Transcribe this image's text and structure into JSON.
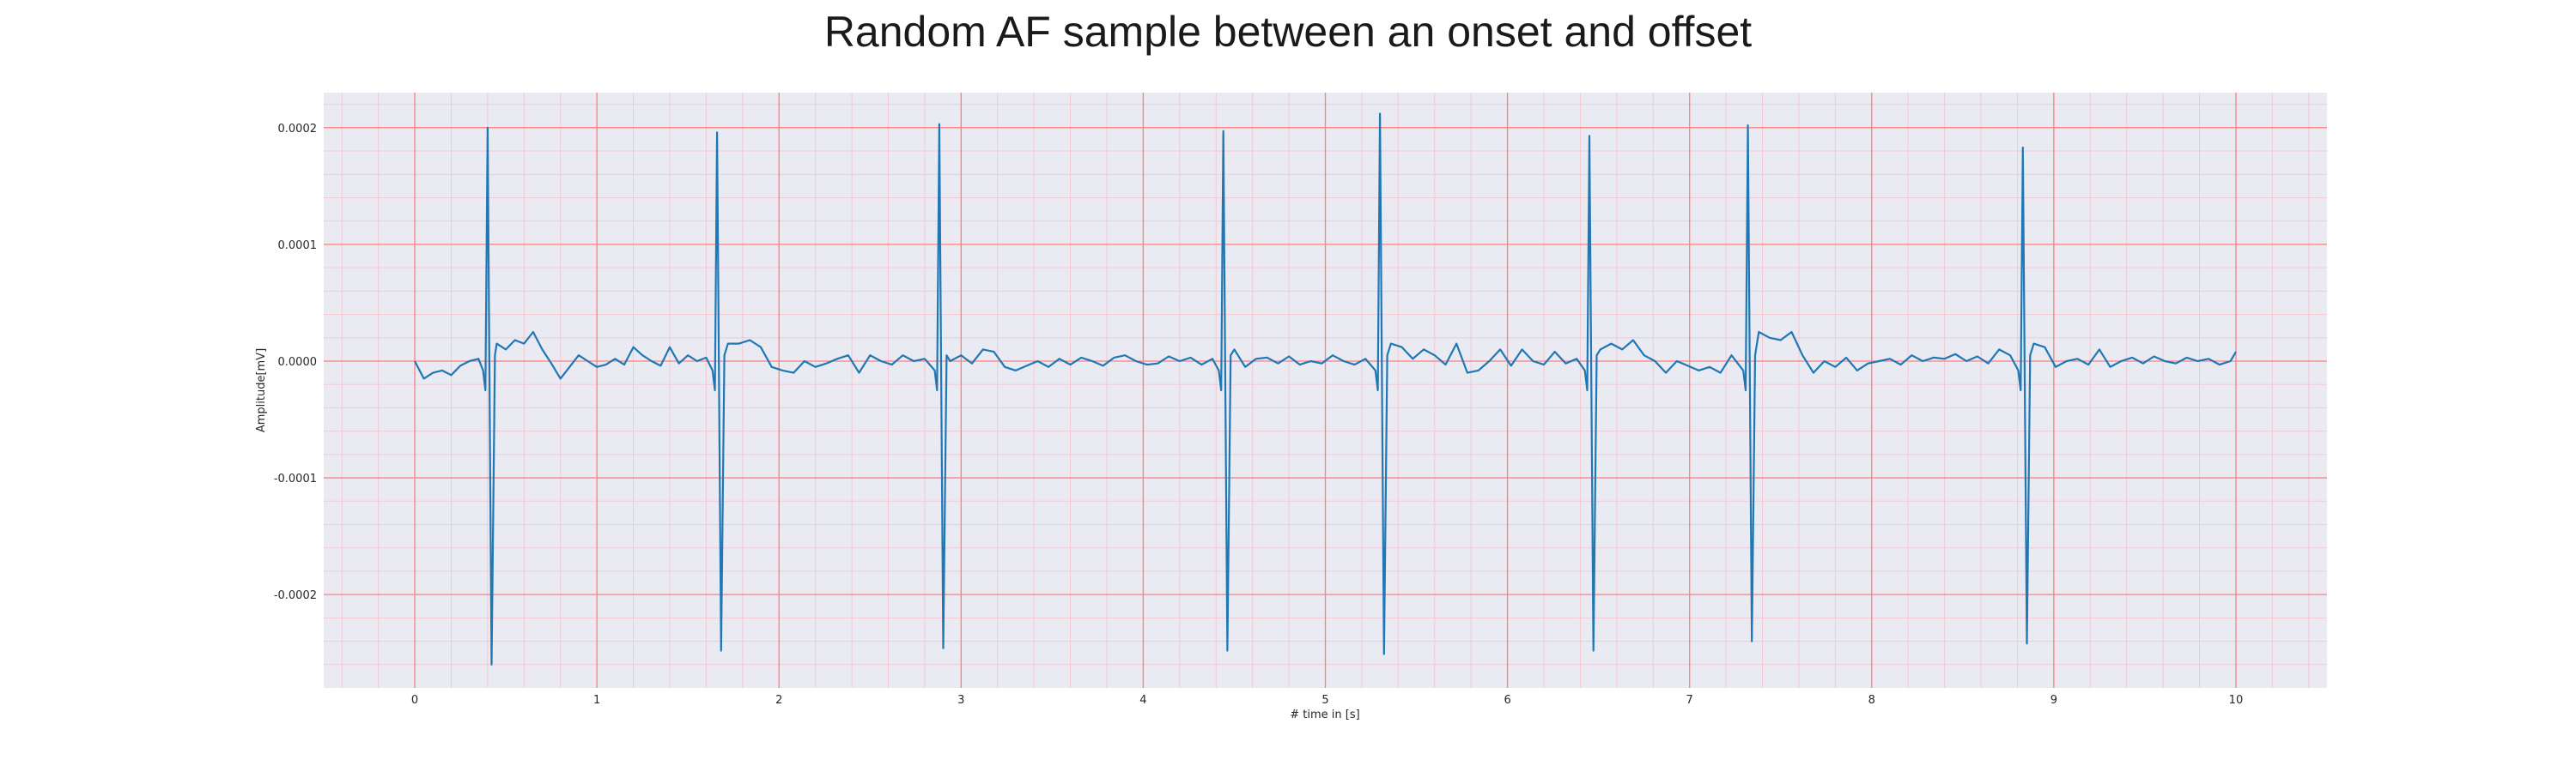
{
  "chart_data": {
    "type": "line",
    "title": "Random AF sample between an onset and offset",
    "xlabel": "# time in [s]",
    "ylabel": "Amplitude[mV]",
    "xlim": [
      -0.5,
      10.5
    ],
    "ylim": [
      -0.00028,
      0.00023
    ],
    "x_ticks": [
      0,
      1,
      2,
      3,
      4,
      5,
      6,
      7,
      8,
      9,
      10
    ],
    "x_tick_labels": [
      "0",
      "1",
      "2",
      "3",
      "4",
      "5",
      "6",
      "7",
      "8",
      "9",
      "10"
    ],
    "y_ticks": [
      0.0002,
      0.0001,
      0.0,
      -0.0001,
      -0.0002
    ],
    "y_tick_labels": [
      "0.0002",
      "0.0001",
      "0.0000",
      "-0.0001",
      "-0.0002"
    ],
    "grid": true,
    "minor_grid": true,
    "legend": "none",
    "colors": {
      "background": "#eaeaf2",
      "major_grid": "#ff7f7f",
      "minor_grid": "#f3c9d2",
      "line": "#1f77b4"
    },
    "beats": [
      {
        "t": 0.4,
        "peak": 0.0002,
        "trough": -0.00026
      },
      {
        "t": 1.66,
        "peak": 0.000196,
        "trough": -0.000248
      },
      {
        "t": 2.88,
        "peak": 0.000203,
        "trough": -0.000246
      },
      {
        "t": 4.44,
        "peak": 0.000197,
        "trough": -0.000248
      },
      {
        "t": 5.3,
        "peak": 0.000212,
        "trough": -0.000251
      },
      {
        "t": 6.45,
        "peak": 0.000193,
        "trough": -0.000248
      },
      {
        "t": 7.32,
        "peak": 0.000202,
        "trough": -0.00024
      },
      {
        "t": 8.83,
        "peak": 0.000183,
        "trough": -0.000242
      }
    ],
    "baseline_series": {
      "x": [
        0,
        0.05,
        0.1,
        0.15,
        0.2,
        0.25,
        0.3,
        0.35,
        0.45,
        0.5,
        0.55,
        0.6,
        0.65,
        0.7,
        0.75,
        0.8,
        0.85,
        0.9,
        0.95,
        1.0,
        1.05,
        1.1,
        1.15,
        1.2,
        1.25,
        1.3,
        1.35,
        1.4,
        1.45,
        1.5,
        1.55,
        1.6,
        1.72,
        1.78,
        1.84,
        1.9,
        1.96,
        2.02,
        2.08,
        2.14,
        2.2,
        2.26,
        2.32,
        2.38,
        2.44,
        2.5,
        2.56,
        2.62,
        2.68,
        2.74,
        2.8,
        2.94,
        3.0,
        3.06,
        3.12,
        3.18,
        3.24,
        3.3,
        3.36,
        3.42,
        3.48,
        3.54,
        3.6,
        3.66,
        3.72,
        3.78,
        3.84,
        3.9,
        3.96,
        4.02,
        4.08,
        4.14,
        4.2,
        4.26,
        4.32,
        4.38,
        4.5,
        4.56,
        4.62,
        4.68,
        4.74,
        4.8,
        4.86,
        4.92,
        4.98,
        5.04,
        5.1,
        5.16,
        5.22,
        5.36,
        5.42,
        5.48,
        5.54,
        5.6,
        5.66,
        5.72,
        5.78,
        5.84,
        5.9,
        5.96,
        6.02,
        6.08,
        6.14,
        6.2,
        6.26,
        6.32,
        6.38,
        6.51,
        6.57,
        6.63,
        6.69,
        6.75,
        6.81,
        6.87,
        6.93,
        6.99,
        7.05,
        7.11,
        7.17,
        7.23,
        7.38,
        7.44,
        7.5,
        7.56,
        7.62,
        7.68,
        7.74,
        7.8,
        7.86,
        7.92,
        7.98,
        8.04,
        8.1,
        8.16,
        8.22,
        8.28,
        8.34,
        8.4,
        8.46,
        8.52,
        8.58,
        8.64,
        8.7,
        8.76,
        8.89,
        8.95,
        9.01,
        9.07,
        9.13,
        9.19,
        9.25,
        9.31,
        9.37,
        9.43,
        9.49,
        9.55,
        9.61,
        9.67,
        9.73,
        9.79,
        9.85,
        9.91,
        9.97,
        10.0
      ],
      "y": [
        0.0,
        -1.5e-05,
        -1e-05,
        -8e-06,
        -1.2e-05,
        -4e-06,
        0.0,
        2e-06,
        1.5e-05,
        1e-05,
        1.8e-05,
        1.5e-05,
        2.5e-05,
        1e-05,
        -2e-06,
        -1.5e-05,
        -5e-06,
        5e-06,
        0.0,
        -5e-06,
        -3e-06,
        2e-06,
        -3e-06,
        1.2e-05,
        5e-06,
        0.0,
        -4e-06,
        1.2e-05,
        -2e-06,
        5e-06,
        0.0,
        3e-06,
        1.5e-05,
        1.5e-05,
        1.8e-05,
        1.2e-05,
        -5e-06,
        -8e-06,
        -1e-05,
        0.0,
        -5e-06,
        -2e-06,
        2e-06,
        5e-06,
        -1e-05,
        5e-06,
        0.0,
        -3e-06,
        5e-06,
        0.0,
        2e-06,
        0.0,
        5e-06,
        -2e-06,
        1e-05,
        8e-06,
        -5e-06,
        -8e-06,
        -4e-06,
        0.0,
        -5e-06,
        2e-06,
        -3e-06,
        3e-06,
        0.0,
        -4e-06,
        3e-06,
        5e-06,
        0.0,
        -3e-06,
        -2e-06,
        4e-06,
        0.0,
        3e-06,
        -3e-06,
        2e-06,
        1e-05,
        -5e-06,
        2e-06,
        3e-06,
        -2e-06,
        4e-06,
        -3e-06,
        0.0,
        -2e-06,
        5e-06,
        0.0,
        -3e-06,
        2e-06,
        1.5e-05,
        1.2e-05,
        2e-06,
        1e-05,
        5e-06,
        -3e-06,
        1.5e-05,
        -1e-05,
        -8e-06,
        0.0,
        1e-05,
        -4e-06,
        1e-05,
        0.0,
        -3e-06,
        8e-06,
        -2e-06,
        2e-06,
        1e-05,
        1.5e-05,
        1e-05,
        1.8e-05,
        5e-06,
        0.0,
        -1e-05,
        0.0,
        -4e-06,
        -8e-06,
        -5e-06,
        -1e-05,
        5e-06,
        2.5e-05,
        2e-05,
        1.8e-05,
        2.5e-05,
        5e-06,
        -1e-05,
        0.0,
        -5e-06,
        3e-06,
        -8e-06,
        -2e-06,
        0.0,
        2e-06,
        -3e-06,
        5e-06,
        0.0,
        3e-06,
        2e-06,
        6e-06,
        0.0,
        4e-06,
        -2e-06,
        1e-05,
        5e-06,
        1.5e-05,
        1.2e-05,
        -5e-06,
        0.0,
        2e-06,
        -3e-06,
        1e-05,
        -5e-06,
        0.0,
        3e-06,
        -2e-06,
        4e-06,
        0.0,
        -2e-06,
        3e-06,
        0.0,
        2e-06,
        -3e-06,
        0.0,
        8e-06
      ]
    }
  }
}
